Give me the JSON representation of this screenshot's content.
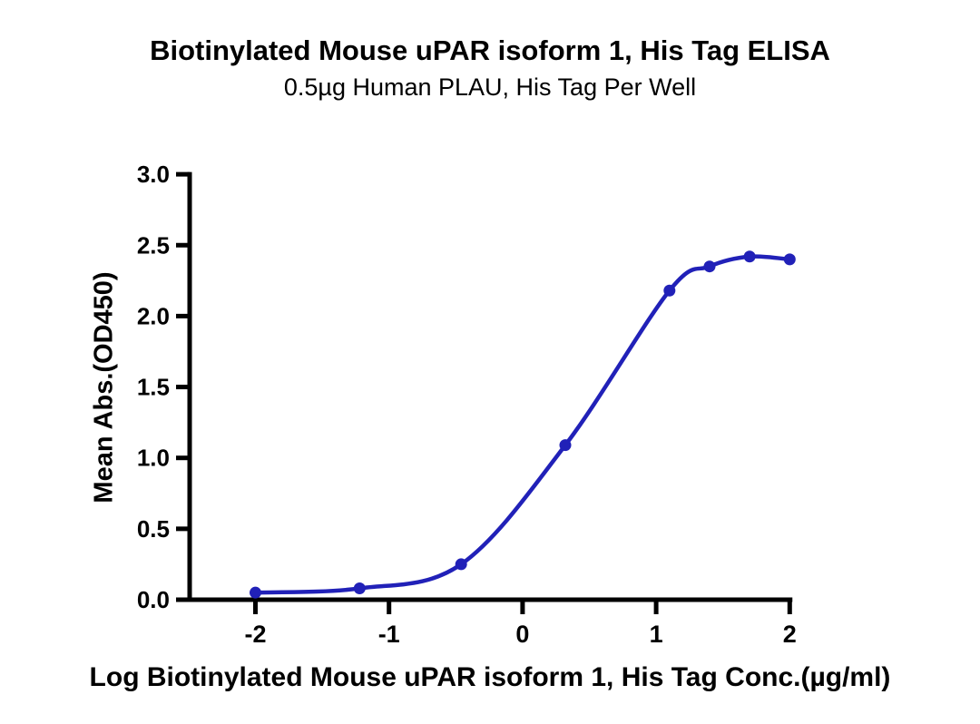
{
  "chart_data": {
    "type": "line",
    "title": "Biotinylated Mouse uPAR isoform 1, His Tag ELISA",
    "subtitle": "0.5µg Human PLAU, His Tag Per Well",
    "xlabel": "Log Biotinylated Mouse uPAR isoform 1, His Tag Conc.(µg/ml)",
    "ylabel": "Mean Abs.(OD450)",
    "series": [
      {
        "name": "Biotinylated Mouse uPAR isoform 1, His Tag",
        "x": [
          -2.0,
          -1.22,
          -0.46,
          0.32,
          1.1,
          1.4,
          1.7,
          2.0
        ],
        "y": [
          0.05,
          0.08,
          0.25,
          1.09,
          2.18,
          2.35,
          2.42,
          2.4
        ]
      }
    ],
    "xticks": {
      "values": [
        -2,
        -1,
        0,
        1,
        2
      ],
      "labels": [
        "-2",
        "-1",
        "0",
        "1",
        "2"
      ]
    },
    "yticks": {
      "values": [
        0,
        0.5,
        1,
        1.5,
        2,
        2.5,
        3
      ],
      "labels": [
        "0.0",
        "0.5",
        "1.0",
        "1.5",
        "2.0",
        "2.5",
        "3.0"
      ]
    },
    "xlim": [
      -2.5,
      2.02
    ],
    "ylim": [
      0,
      3
    ],
    "grid": false,
    "legend": "none",
    "marker": "circle",
    "line_color": "#2121b8",
    "axis_color": "#000000"
  }
}
